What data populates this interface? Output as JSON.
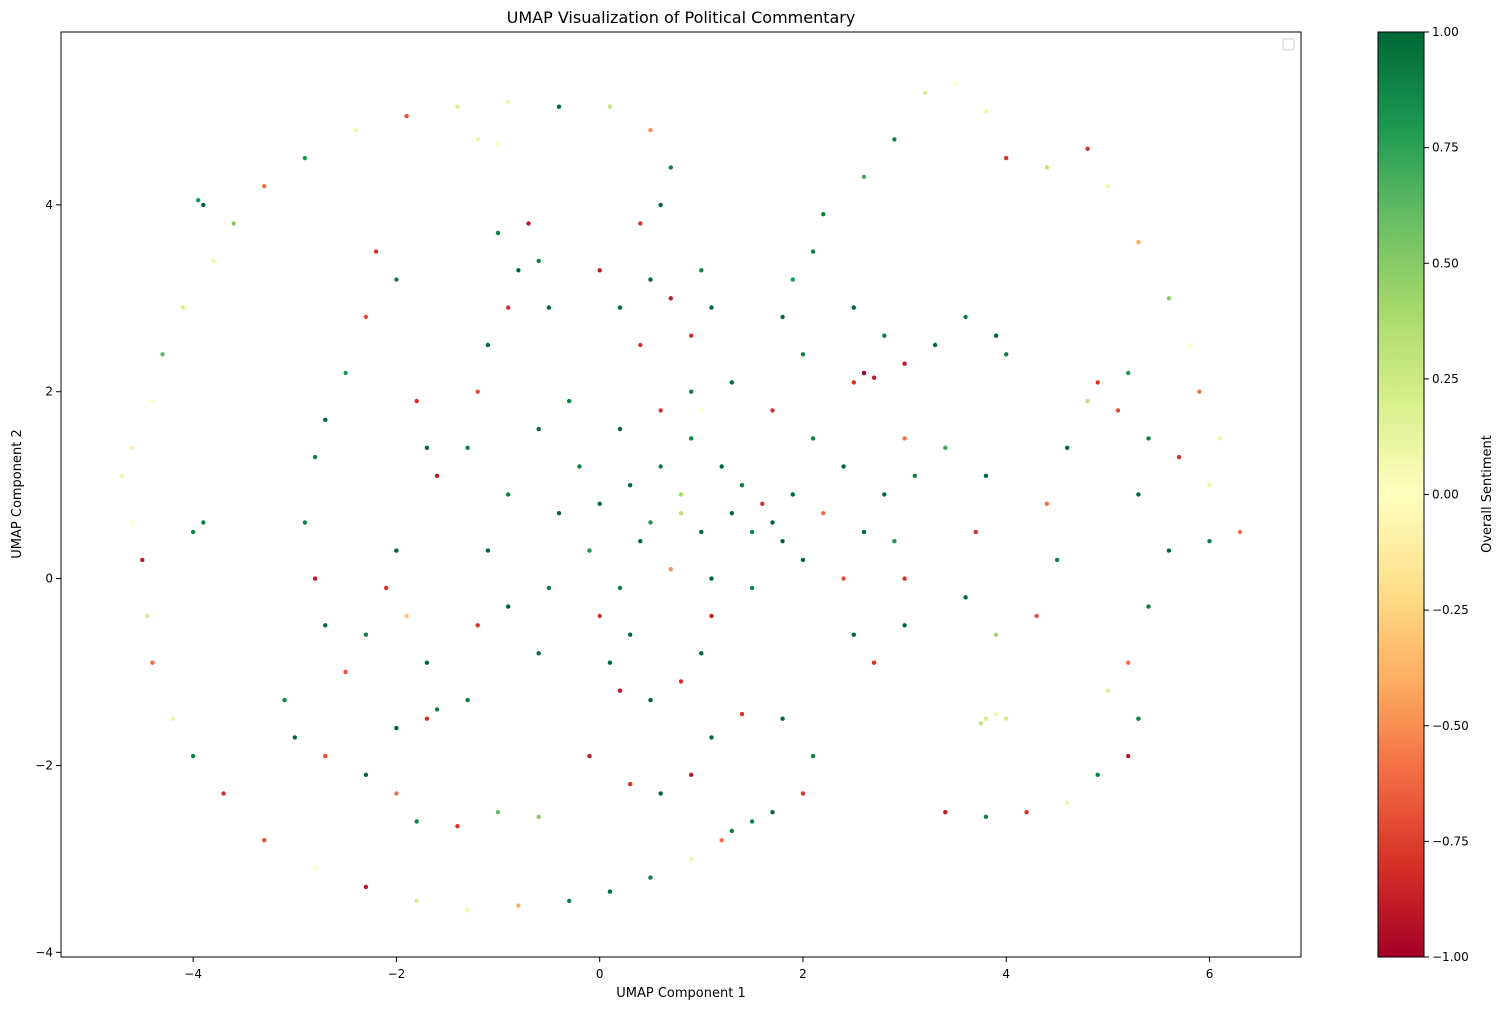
{
  "chart_data": {
    "type": "scatter",
    "title": "UMAP Visualization of Political Commentary",
    "xlabel": "UMAP Component 1",
    "ylabel": "UMAP Component 2",
    "xlim": [
      -5.3,
      6.9
    ],
    "ylim": [
      -4.05,
      5.85
    ],
    "xticks": [
      -4,
      -2,
      0,
      2,
      4,
      6
    ],
    "xtick_labels": [
      "−4",
      "−2",
      "0",
      "2",
      "4",
      "6"
    ],
    "yticks": [
      -4,
      -2,
      0,
      2,
      4
    ],
    "ytick_labels": [
      "−4",
      "−2",
      "0",
      "2",
      "4"
    ],
    "grid": false,
    "legend": {
      "placement": "top-right",
      "entries": []
    },
    "colorbar": {
      "label": "Overall Sentiment",
      "colormap": "RdYlGn",
      "range": [
        -1.0,
        1.0
      ],
      "ticks": [
        -1.0,
        -0.75,
        -0.5,
        -0.25,
        0.0,
        0.25,
        0.5,
        0.75,
        1.0
      ],
      "tick_labels": [
        "−1.00",
        "−0.75",
        "−0.50",
        "−0.25",
        "0.00",
        "0.25",
        "0.50",
        "0.75",
        "1.00"
      ],
      "colors": [
        "#a50026",
        "#d73027",
        "#f46d43",
        "#fdae61",
        "#fee08b",
        "#ffffbf",
        "#d9ef8b",
        "#a6d96a",
        "#66bd63",
        "#1a9850",
        "#006837"
      ]
    },
    "series": [
      {
        "points": [
          [
            -4.7,
            1.1,
            0.1
          ],
          [
            -4.6,
            0.6,
            0.0
          ],
          [
            -4.5,
            0.2,
            -0.9
          ],
          [
            -4.45,
            -0.4,
            0.2
          ],
          [
            -4.4,
            -0.9,
            -0.6
          ],
          [
            -4.2,
            -1.5,
            0.1
          ],
          [
            -4.0,
            -1.9,
            0.9
          ],
          [
            -3.7,
            -2.3,
            -0.8
          ],
          [
            -3.3,
            -2.8,
            -0.7
          ],
          [
            -2.8,
            -3.1,
            0.0
          ],
          [
            -2.3,
            -3.3,
            -0.9
          ],
          [
            -1.8,
            -3.45,
            0.2
          ],
          [
            -1.3,
            -3.55,
            0.1
          ],
          [
            -0.8,
            -3.5,
            -0.4
          ],
          [
            -0.3,
            -3.45,
            0.9
          ],
          [
            0.1,
            -3.35,
            1.0
          ],
          [
            0.5,
            -3.2,
            0.9
          ],
          [
            0.9,
            -3.0,
            0.1
          ],
          [
            1.2,
            -2.8,
            -0.6
          ],
          [
            1.5,
            -2.6,
            0.9
          ],
          [
            -4.6,
            1.4,
            -0.1
          ],
          [
            -4.4,
            1.9,
            0.0
          ],
          [
            -4.3,
            2.4,
            0.6
          ],
          [
            -4.1,
            2.9,
            0.2
          ],
          [
            -3.8,
            3.4,
            0.1
          ],
          [
            -3.6,
            3.8,
            0.5
          ],
          [
            -3.3,
            4.2,
            -0.6
          ],
          [
            -2.9,
            4.5,
            0.8
          ],
          [
            -2.4,
            4.8,
            0.1
          ],
          [
            -1.9,
            4.95,
            -0.7
          ],
          [
            -1.4,
            5.05,
            0.2
          ],
          [
            -0.9,
            5.1,
            0.1
          ],
          [
            -0.4,
            5.05,
            1.0
          ],
          [
            0.1,
            5.05,
            0.3
          ],
          [
            0.5,
            4.8,
            -0.5
          ],
          [
            0.7,
            4.4,
            0.9
          ],
          [
            0.6,
            4.0,
            1.0
          ],
          [
            0.4,
            3.8,
            -0.8
          ],
          [
            -3.95,
            4.05,
            0.8
          ],
          [
            -3.9,
            4.0,
            1.0
          ],
          [
            -4.0,
            0.5,
            0.9
          ],
          [
            -3.9,
            0.6,
            0.9
          ],
          [
            -1.2,
            4.7,
            0.1
          ],
          [
            -1.0,
            4.65,
            0.0
          ],
          [
            2.2,
            3.9,
            0.9
          ],
          [
            2.6,
            4.3,
            0.7
          ],
          [
            2.9,
            4.7,
            0.9
          ],
          [
            3.2,
            5.2,
            0.2
          ],
          [
            3.5,
            5.3,
            0.0
          ],
          [
            3.8,
            5.0,
            0.1
          ],
          [
            4.0,
            4.5,
            -0.8
          ],
          [
            4.4,
            4.4,
            0.3
          ],
          [
            4.8,
            4.6,
            -0.8
          ],
          [
            5.0,
            4.2,
            0.1
          ],
          [
            5.3,
            3.6,
            -0.4
          ],
          [
            5.6,
            3.0,
            0.5
          ],
          [
            5.8,
            2.5,
            0.0
          ],
          [
            5.9,
            2.0,
            -0.6
          ],
          [
            6.1,
            1.5,
            0.1
          ],
          [
            6.0,
            1.0,
            0.1
          ],
          [
            6.0,
            0.4,
            0.9
          ],
          [
            6.3,
            0.5,
            -0.6
          ],
          [
            5.6,
            0.3,
            1.0
          ],
          [
            5.4,
            -0.3,
            0.9
          ],
          [
            5.2,
            -0.9,
            -0.6
          ],
          [
            5.0,
            -1.2,
            0.2
          ],
          [
            5.3,
            -1.5,
            0.9
          ],
          [
            5.2,
            -1.9,
            -0.9
          ],
          [
            4.9,
            -2.1,
            0.9
          ],
          [
            4.6,
            -2.4,
            0.1
          ],
          [
            4.2,
            -2.5,
            -0.8
          ],
          [
            3.8,
            -2.55,
            0.9
          ],
          [
            3.4,
            -2.5,
            -0.9
          ],
          [
            3.8,
            -1.5,
            0.2
          ],
          [
            3.9,
            -1.45,
            0.1
          ],
          [
            3.75,
            -1.55,
            0.3
          ],
          [
            4.0,
            -1.5,
            0.2
          ],
          [
            2.1,
            3.5,
            0.9
          ],
          [
            1.9,
            3.2,
            0.8
          ],
          [
            1.8,
            2.8,
            1.0
          ],
          [
            2.0,
            2.4,
            0.9
          ],
          [
            2.5,
            2.9,
            1.0
          ],
          [
            2.8,
            2.6,
            0.9
          ],
          [
            3.0,
            2.3,
            -0.9
          ],
          [
            3.3,
            2.5,
            1.0
          ],
          [
            3.6,
            2.8,
            0.9
          ],
          [
            3.9,
            2.6,
            1.0
          ],
          [
            4.0,
            2.4,
            0.9
          ],
          [
            2.6,
            2.2,
            -1.0
          ],
          [
            2.7,
            2.15,
            -0.9
          ],
          [
            2.5,
            2.1,
            -0.8
          ],
          [
            3.0,
            1.5,
            -0.6
          ],
          [
            3.4,
            1.4,
            0.7
          ],
          [
            3.8,
            1.1,
            1.0
          ],
          [
            3.7,
            0.5,
            -0.8
          ],
          [
            3.6,
            -0.2,
            1.0
          ],
          [
            3.9,
            -0.6,
            0.4
          ],
          [
            4.3,
            -0.4,
            -0.7
          ],
          [
            4.5,
            0.2,
            0.9
          ],
          [
            4.4,
            0.8,
            -0.6
          ],
          [
            4.6,
            1.4,
            1.0
          ],
          [
            4.8,
            1.9,
            0.3
          ],
          [
            5.1,
            1.8,
            -0.7
          ],
          [
            5.4,
            1.5,
            0.9
          ],
          [
            5.7,
            1.3,
            -0.8
          ],
          [
            5.3,
            0.9,
            1.0
          ],
          [
            4.9,
            2.1,
            -0.8
          ],
          [
            5.2,
            2.2,
            0.8
          ],
          [
            2.4,
            0.0,
            -0.7
          ],
          [
            2.5,
            -0.6,
            1.0
          ],
          [
            2.7,
            -0.9,
            -0.8
          ],
          [
            3.0,
            -0.5,
            1.0
          ],
          [
            3.0,
            0.0,
            -0.8
          ],
          [
            2.9,
            0.4,
            0.8
          ],
          [
            -2.2,
            3.5,
            -0.8
          ],
          [
            -2.0,
            3.2,
            0.9
          ],
          [
            -2.3,
            2.8,
            -0.7
          ],
          [
            -2.5,
            2.2,
            0.8
          ],
          [
            -2.7,
            1.7,
            1.0
          ],
          [
            -2.8,
            1.3,
            0.9
          ],
          [
            -2.9,
            0.6,
            0.9
          ],
          [
            -2.8,
            0.0,
            -0.9
          ],
          [
            -2.7,
            -0.5,
            1.0
          ],
          [
            -2.5,
            -1.0,
            -0.7
          ],
          [
            -2.3,
            -0.6,
            0.9
          ],
          [
            -2.1,
            -0.1,
            -0.8
          ],
          [
            -2.0,
            0.3,
            1.0
          ],
          [
            -1.9,
            -0.4,
            -0.3
          ],
          [
            -1.7,
            -0.9,
            1.0
          ],
          [
            -1.6,
            -1.4,
            0.9
          ],
          [
            -1.8,
            1.9,
            -0.8
          ],
          [
            -1.7,
            1.4,
            1.0
          ],
          [
            -1.6,
            1.1,
            -0.9
          ],
          [
            -1.3,
            1.4,
            0.9
          ],
          [
            -1.2,
            2.0,
            -0.7
          ],
          [
            -1.1,
            2.5,
            1.0
          ],
          [
            -0.9,
            2.9,
            -0.8
          ],
          [
            -0.8,
            3.3,
            1.0
          ],
          [
            -1.0,
            3.7,
            0.9
          ],
          [
            -0.7,
            3.8,
            -0.9
          ],
          [
            -0.6,
            3.4,
            0.9
          ],
          [
            -0.5,
            2.9,
            1.0
          ],
          [
            0.0,
            3.3,
            -0.9
          ],
          [
            0.2,
            2.9,
            1.0
          ],
          [
            0.4,
            2.5,
            -0.8
          ],
          [
            0.5,
            3.2,
            1.0
          ],
          [
            0.7,
            3.0,
            -0.9
          ],
          [
            1.0,
            3.3,
            0.9
          ],
          [
            1.1,
            2.9,
            1.0
          ],
          [
            0.9,
            2.6,
            -0.8
          ],
          [
            -3.1,
            -1.3,
            0.9
          ],
          [
            -3.0,
            -1.7,
            1.0
          ],
          [
            -2.7,
            -1.9,
            -0.7
          ],
          [
            -2.3,
            -2.1,
            1.0
          ],
          [
            -2.0,
            -2.3,
            -0.6
          ],
          [
            -1.8,
            -2.6,
            0.9
          ],
          [
            -1.4,
            -2.65,
            -0.8
          ],
          [
            -1.0,
            -2.5,
            0.6
          ],
          [
            -0.6,
            -2.55,
            0.5
          ],
          [
            -2.0,
            -1.6,
            1.0
          ],
          [
            -1.7,
            -1.5,
            -0.8
          ],
          [
            -1.3,
            -1.3,
            0.9
          ],
          [
            0.0,
            -0.4,
            -0.8
          ],
          [
            0.1,
            -0.9,
            1.0
          ],
          [
            0.2,
            -1.2,
            -0.9
          ],
          [
            0.5,
            -1.3,
            1.0
          ],
          [
            0.8,
            -1.1,
            -0.8
          ],
          [
            1.0,
            -0.8,
            1.0
          ],
          [
            1.1,
            -0.4,
            -0.9
          ],
          [
            0.3,
            -0.6,
            1.0
          ],
          [
            -0.1,
            -1.9,
            -0.9
          ],
          [
            0.3,
            -2.2,
            -0.8
          ],
          [
            0.6,
            -2.3,
            1.0
          ],
          [
            0.9,
            -2.1,
            -0.9
          ],
          [
            1.1,
            -1.7,
            1.0
          ],
          [
            1.4,
            -1.45,
            -0.8
          ],
          [
            1.8,
            -1.5,
            1.0
          ],
          [
            2.1,
            -1.9,
            0.9
          ],
          [
            2.0,
            -2.3,
            -0.8
          ],
          [
            1.7,
            -2.5,
            1.0
          ],
          [
            1.3,
            -2.7,
            0.9
          ],
          [
            0.3,
            1.0,
            1.0
          ],
          [
            0.5,
            0.6,
            0.8
          ],
          [
            0.8,
            0.9,
            0.4
          ],
          [
            1.0,
            0.5,
            1.0
          ],
          [
            1.3,
            0.7,
            1.0
          ],
          [
            1.5,
            0.5,
            0.9
          ],
          [
            1.7,
            0.6,
            1.0
          ],
          [
            1.8,
            0.4,
            1.0
          ],
          [
            1.6,
            0.8,
            -0.8
          ],
          [
            1.2,
            1.2,
            1.0
          ],
          [
            0.9,
            1.5,
            0.9
          ],
          [
            0.6,
            1.8,
            -0.8
          ],
          [
            0.2,
            1.6,
            1.0
          ],
          [
            -0.2,
            1.2,
            0.9
          ],
          [
            -0.4,
            0.7,
            1.0
          ],
          [
            -0.1,
            0.3,
            0.8
          ],
          [
            0.2,
            -0.1,
            0.9
          ],
          [
            0.7,
            0.1,
            -0.5
          ],
          [
            1.1,
            0.0,
            1.0
          ],
          [
            1.5,
            -0.1,
            0.9
          ],
          [
            2.0,
            0.2,
            1.0
          ],
          [
            2.2,
            0.7,
            -0.6
          ],
          [
            2.4,
            1.2,
            1.0
          ],
          [
            2.1,
            1.5,
            0.9
          ],
          [
            1.7,
            1.8,
            -0.8
          ],
          [
            1.3,
            2.1,
            1.0
          ],
          [
            0.9,
            2.0,
            0.9
          ],
          [
            -0.6,
            1.6,
            1.0
          ],
          [
            -0.9,
            0.9,
            0.9
          ],
          [
            -1.1,
            0.3,
            1.0
          ],
          [
            -1.2,
            -0.5,
            -0.8
          ],
          [
            -0.9,
            -0.3,
            1.0
          ],
          [
            -0.5,
            -0.1,
            0.9
          ],
          [
            -0.6,
            -0.8,
            1.0
          ],
          [
            0.4,
            0.4,
            1.0
          ],
          [
            0.6,
            1.2,
            0.9
          ],
          [
            1.4,
            1.0,
            0.9
          ],
          [
            1.9,
            0.9,
            1.0
          ],
          [
            0.0,
            0.8,
            1.0
          ],
          [
            -0.3,
            1.9,
            0.9
          ],
          [
            2.8,
            0.9,
            1.0
          ],
          [
            3.1,
            1.1,
            0.9
          ],
          [
            2.6,
            0.5,
            1.0
          ],
          [
            1.0,
            1.8,
            0.0
          ],
          [
            0.8,
            0.7,
            0.3
          ]
        ]
      }
    ]
  }
}
